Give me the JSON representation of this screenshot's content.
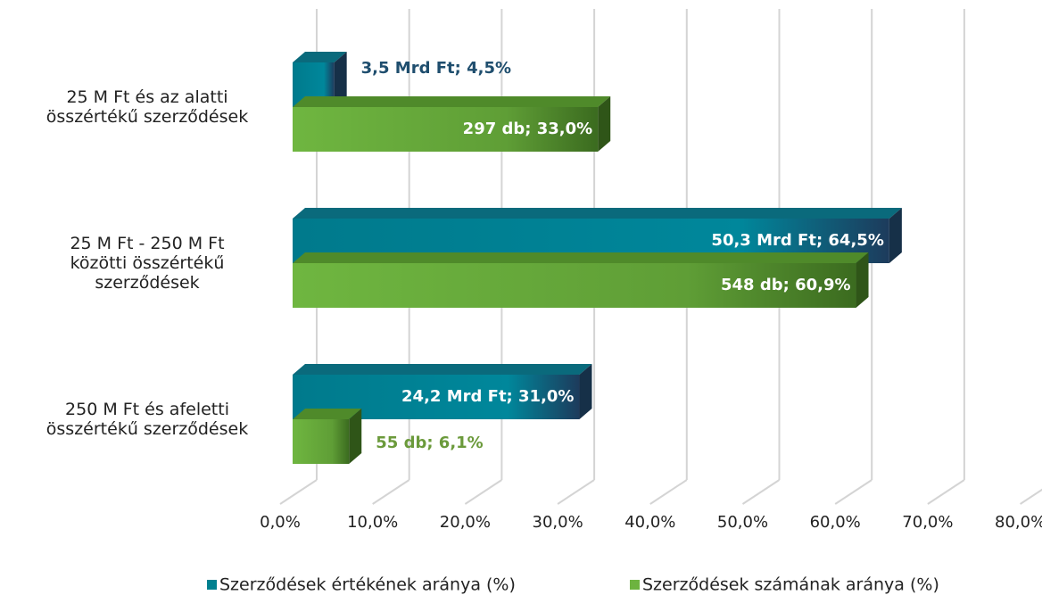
{
  "chart_data": {
    "type": "bar",
    "orientation": "horizontal",
    "categories": [
      [
        "25 M Ft  és az alatti",
        "összértékű  szerződések"
      ],
      [
        "25 M Ft - 250 M Ft",
        "közötti összértékű",
        "szerződések"
      ],
      [
        "250 M Ft  és afeletti",
        "összértékű szerződések"
      ]
    ],
    "series": [
      {
        "name": "Szerződések értékének aránya (%)",
        "color": "#00808f",
        "values": [
          4.5,
          64.5,
          31.0
        ],
        "value_labels": [
          "3,5 Mrd Ft; 4,5%",
          "50,3 Mrd Ft; 64,5%",
          "24,2 Mrd Ft; 31,0%"
        ]
      },
      {
        "name": "Szerződések számának aránya (%)",
        "color": "#6db33f",
        "values": [
          33.0,
          60.9,
          6.1
        ],
        "value_labels": [
          "297 db; 33,0%",
          "548 db; 60,9%",
          "55 db; 6,1%"
        ]
      }
    ],
    "xlim": [
      0,
      80
    ],
    "xticks": [
      {
        "value": 0,
        "label": "0,0%"
      },
      {
        "value": 10,
        "label": "10,0%"
      },
      {
        "value": 20,
        "label": "20,0%"
      },
      {
        "value": 30,
        "label": "30,0%"
      },
      {
        "value": 40,
        "label": "40,0%"
      },
      {
        "value": 50,
        "label": "50,0%"
      },
      {
        "value": 60,
        "label": "60,0%"
      },
      {
        "value": 70,
        "label": "70,0%"
      },
      {
        "value": 80,
        "label": "80,0%"
      }
    ],
    "grid": true,
    "legend": "bottom"
  }
}
